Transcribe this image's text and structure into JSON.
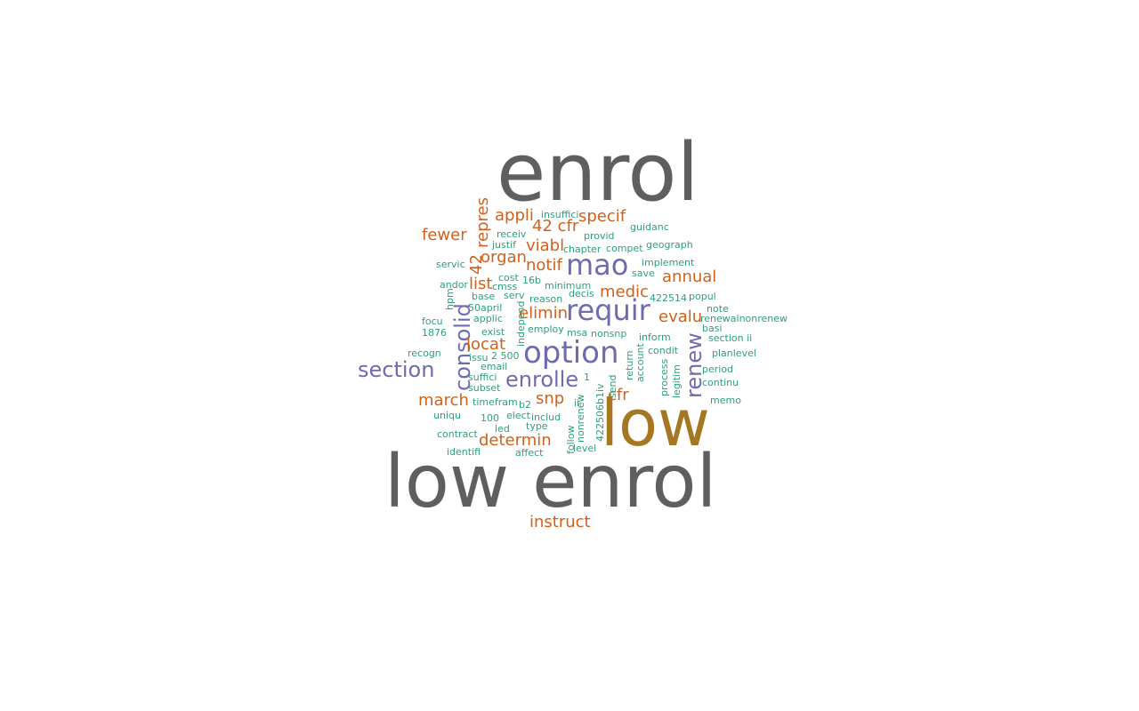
{
  "colors": {
    "grey": "#5f5f5f",
    "gold": "#a57722",
    "purple": "#6f6bb1",
    "orange": "#d0611c",
    "green": "#2e9e7c"
  },
  "words": [
    {
      "text": "enrol",
      "color": "grey"
    },
    {
      "text": "low",
      "color": "gold"
    },
    {
      "text": "low enrol",
      "color": "grey"
    },
    {
      "text": "option",
      "color": "purple"
    },
    {
      "text": "requir",
      "color": "purple"
    },
    {
      "text": "mao",
      "color": "purple"
    },
    {
      "text": "section",
      "color": "purple"
    },
    {
      "text": "enrolle",
      "color": "purple"
    },
    {
      "text": "consolid",
      "color": "purple"
    },
    {
      "text": "renew",
      "color": "purple"
    },
    {
      "text": "appli",
      "color": "orange"
    },
    {
      "text": "specif",
      "color": "orange"
    },
    {
      "text": "42 cfr",
      "color": "orange"
    },
    {
      "text": "fewer",
      "color": "orange"
    },
    {
      "text": "repres",
      "color": "orange"
    },
    {
      "text": "viabl",
      "color": "orange"
    },
    {
      "text": "organ",
      "color": "orange"
    },
    {
      "text": "notif",
      "color": "orange"
    },
    {
      "text": "42",
      "color": "orange"
    },
    {
      "text": "annual",
      "color": "orange"
    },
    {
      "text": "list",
      "color": "orange"
    },
    {
      "text": "medic",
      "color": "orange"
    },
    {
      "text": "elimin",
      "color": "orange"
    },
    {
      "text": "evalu",
      "color": "orange"
    },
    {
      "text": "locat",
      "color": "orange"
    },
    {
      "text": "march",
      "color": "orange"
    },
    {
      "text": "snp",
      "color": "orange"
    },
    {
      "text": "cfr",
      "color": "orange"
    },
    {
      "text": "determin",
      "color": "orange"
    },
    {
      "text": "instruct",
      "color": "orange"
    },
    {
      "text": "insuffici",
      "color": "green"
    },
    {
      "text": "guidanc",
      "color": "green"
    },
    {
      "text": "receiv",
      "color": "green"
    },
    {
      "text": "provid",
      "color": "green"
    },
    {
      "text": "justif",
      "color": "green"
    },
    {
      "text": "chapter",
      "color": "green"
    },
    {
      "text": "compet",
      "color": "green"
    },
    {
      "text": "geograph",
      "color": "green"
    },
    {
      "text": "servic",
      "color": "green"
    },
    {
      "text": "implement",
      "color": "green"
    },
    {
      "text": "cost",
      "color": "green"
    },
    {
      "text": "16b",
      "color": "green"
    },
    {
      "text": "save",
      "color": "green"
    },
    {
      "text": "andor",
      "color": "green"
    },
    {
      "text": "cmss",
      "color": "green"
    },
    {
      "text": "minimum",
      "color": "green"
    },
    {
      "text": "base",
      "color": "green"
    },
    {
      "text": "serv",
      "color": "green"
    },
    {
      "text": "reason",
      "color": "green"
    },
    {
      "text": "decis",
      "color": "green"
    },
    {
      "text": "422514",
      "color": "green"
    },
    {
      "text": "popul",
      "color": "green"
    },
    {
      "text": "hpm",
      "color": "green"
    },
    {
      "text": "50april",
      "color": "green"
    },
    {
      "text": "note",
      "color": "green"
    },
    {
      "text": "applic",
      "color": "green"
    },
    {
      "text": "focu",
      "color": "green"
    },
    {
      "text": "independ",
      "color": "green"
    },
    {
      "text": "renewalnonrenew",
      "color": "green"
    },
    {
      "text": "employ",
      "color": "green"
    },
    {
      "text": "basi",
      "color": "green"
    },
    {
      "text": "exist",
      "color": "green"
    },
    {
      "text": "msa",
      "color": "green"
    },
    {
      "text": "nonsnp",
      "color": "green"
    },
    {
      "text": "1876",
      "color": "green"
    },
    {
      "text": "inform",
      "color": "green"
    },
    {
      "text": "section ii",
      "color": "green"
    },
    {
      "text": "recogn",
      "color": "green"
    },
    {
      "text": "issu",
      "color": "green"
    },
    {
      "text": "2 500",
      "color": "green"
    },
    {
      "text": "account",
      "color": "green"
    },
    {
      "text": "condit",
      "color": "green"
    },
    {
      "text": "planlevel",
      "color": "green"
    },
    {
      "text": "email",
      "color": "green"
    },
    {
      "text": "return",
      "color": "green"
    },
    {
      "text": "period",
      "color": "green"
    },
    {
      "text": "suffici",
      "color": "green"
    },
    {
      "text": "process",
      "color": "green"
    },
    {
      "text": "1",
      "color": "green"
    },
    {
      "text": "continu",
      "color": "green"
    },
    {
      "text": "subset",
      "color": "green"
    },
    {
      "text": "send",
      "color": "green"
    },
    {
      "text": "legitim",
      "color": "green"
    },
    {
      "text": "timefram",
      "color": "green"
    },
    {
      "text": "b2",
      "color": "green"
    },
    {
      "text": "ii",
      "color": "green"
    },
    {
      "text": "memo",
      "color": "green"
    },
    {
      "text": "uniqu",
      "color": "green"
    },
    {
      "text": "100",
      "color": "green"
    },
    {
      "text": "elect",
      "color": "green"
    },
    {
      "text": "includ",
      "color": "green"
    },
    {
      "text": "led",
      "color": "green"
    },
    {
      "text": "type",
      "color": "green"
    },
    {
      "text": "nonrenew",
      "color": "green"
    },
    {
      "text": "422506b1iv",
      "color": "green"
    },
    {
      "text": "contract",
      "color": "green"
    },
    {
      "text": "follow",
      "color": "green"
    },
    {
      "text": "level",
      "color": "green"
    },
    {
      "text": "identifi",
      "color": "green"
    },
    {
      "text": "affect",
      "color": "green"
    }
  ]
}
